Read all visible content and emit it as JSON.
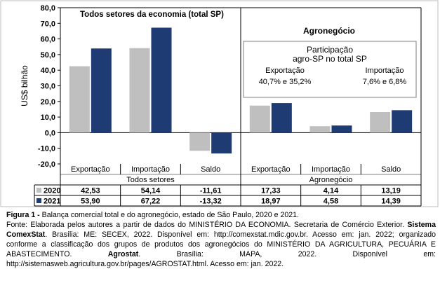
{
  "chart_data": {
    "type": "bar",
    "ylabel": "US$ bilhão",
    "ylim": [
      -20,
      80
    ],
    "yticks": [
      "80,0",
      "70,0",
      "60,0",
      "50,0",
      "40,0",
      "30,0",
      "20,0",
      "10,0",
      "0,0",
      "-10,0",
      "-20,0"
    ],
    "grid": false,
    "groups": [
      {
        "title": "Todos setores da economia (total SP)",
        "table_label": "Todos setores"
      },
      {
        "title": "Agronegócio",
        "table_label": "Agronegócio"
      }
    ],
    "categories": [
      "Exportação",
      "Importação",
      "Saldo",
      "Exportação",
      "Importação",
      "Saldo"
    ],
    "series": [
      {
        "name": "2020",
        "color": "#bfbfbf",
        "values": [
          42.53,
          54.14,
          -11.61,
          17.33,
          4.14,
          13.19
        ],
        "labels": [
          "42,53",
          "54,14",
          "-11,61",
          "17,33",
          "4,14",
          "13,19"
        ]
      },
      {
        "name": "2021",
        "color": "#1f3b73",
        "values": [
          53.9,
          67.22,
          -13.32,
          18.97,
          4.58,
          14.39
        ],
        "labels": [
          "53,90",
          "67,22",
          "-13,32",
          "18,97",
          "4,58",
          "14,39"
        ]
      }
    ],
    "annotation": {
      "title_line1": "Participação",
      "title_line2": "agro-SP no total SP",
      "left_label": "Exportação",
      "left_value": "40,7% e 35,2%",
      "right_label": "Importação",
      "right_value": "7,6% e 6,8%"
    }
  },
  "caption": {
    "figure_label": "Figura 1 -",
    "figure_text": " Balança comercial total e do agronegócio, estado de São Paulo, 2020 e 2021.",
    "source_1": "Fonte: Elaborada pelos autores a partir de dados do MINISTÉRIO DA ECONOMIA. Secretaria de Comércio Exterior. ",
    "source_bold_1": "Sistema ComexStat",
    "source_2": ". Brasília: ME: SECEX, 2022. Disponível em: http://comexstat.mdic.gov.br. Acesso em: jan. 2022; organizado conforme a classificação dos grupos de produtos dos agronegócios do MINISTÉRIO DA AGRICULTURA, PECUÁRIA E ABASTECIMENTO. ",
    "source_bold_2": "Agrostat",
    "source_3": ". Brasília: MAPA, 2022. Disponível em: http://sistemasweb.agricultura.gov.br/pages/AGROSTAT.html. Acesso em: jan. 2022."
  }
}
